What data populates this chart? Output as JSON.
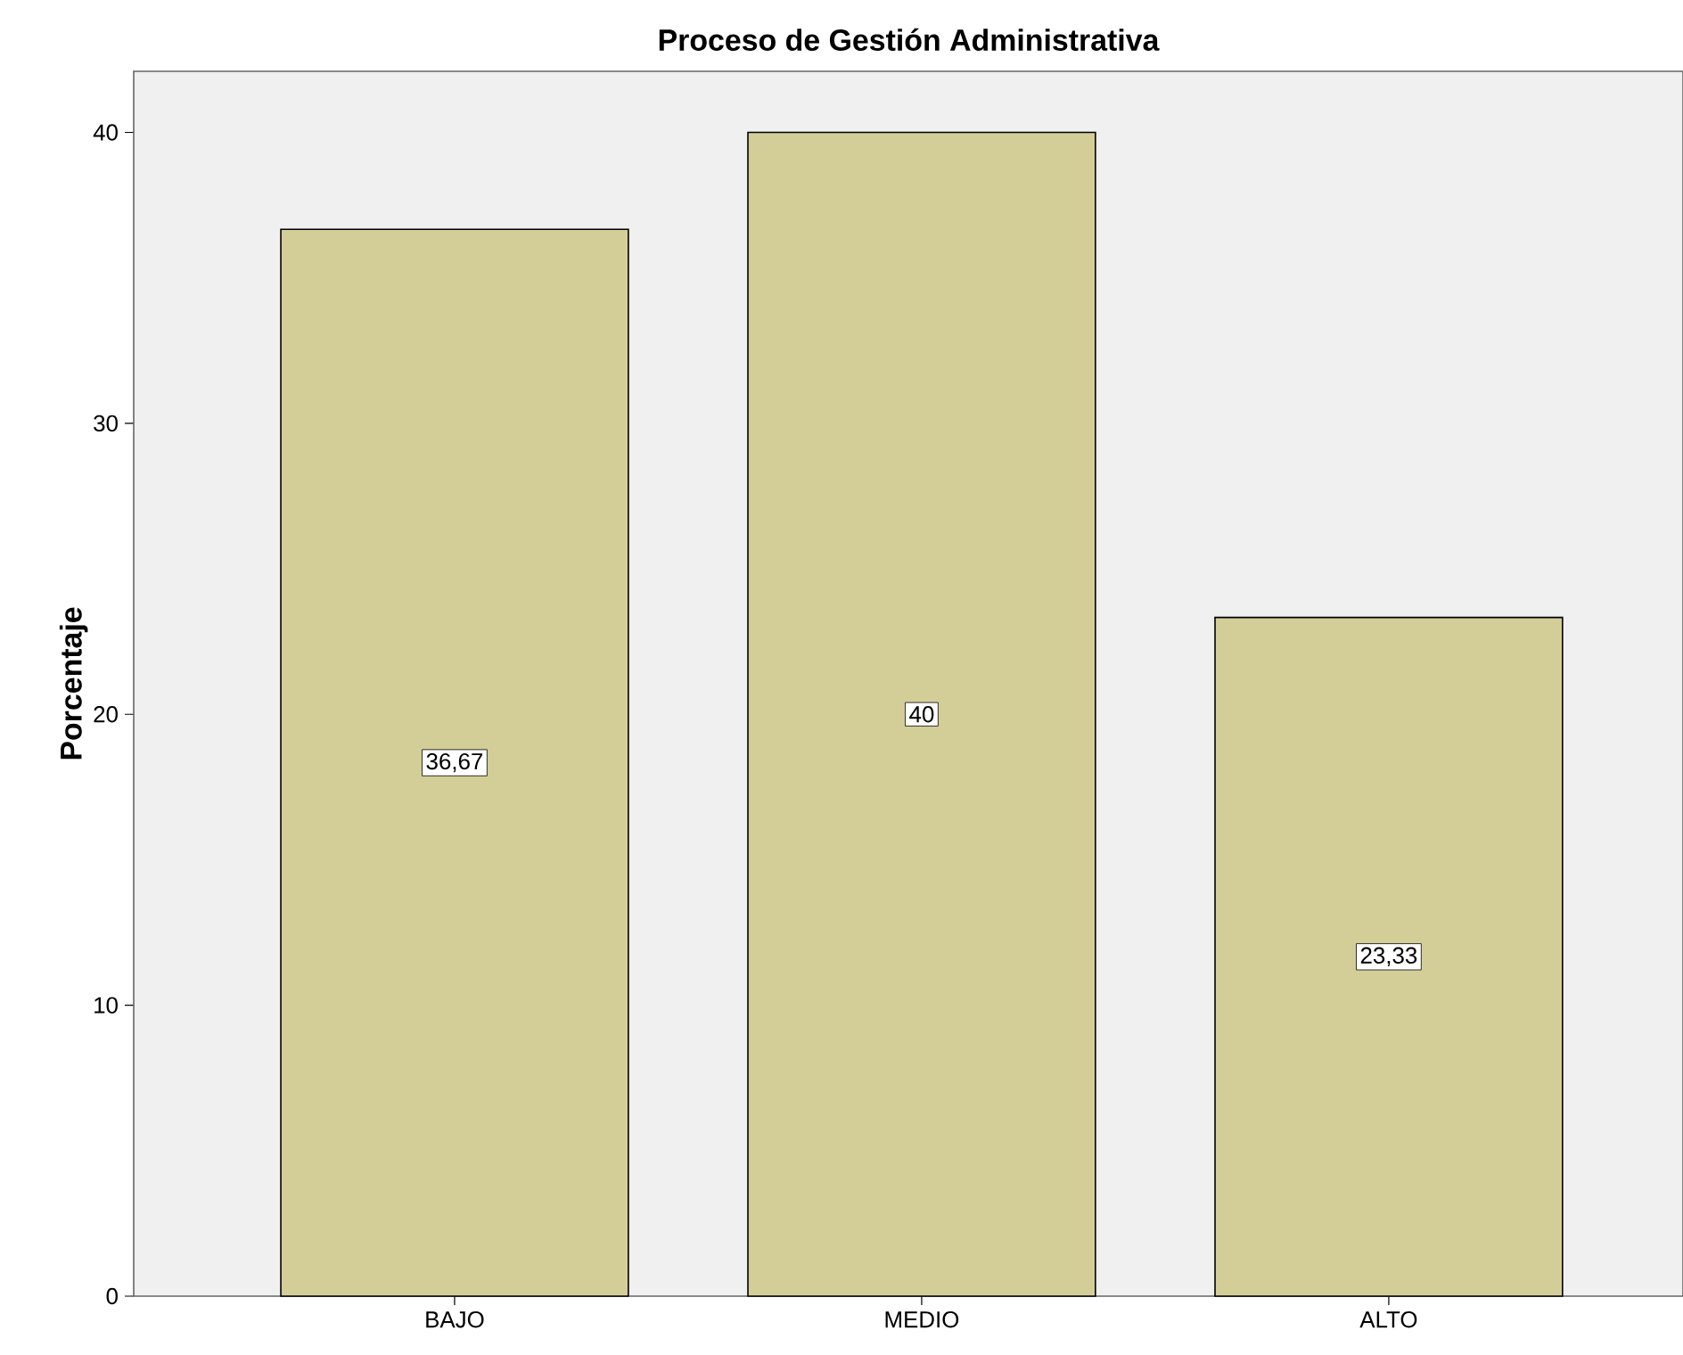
{
  "chart_data": {
    "type": "bar",
    "title": "Proceso de Gestión Administrativa",
    "ylabel": "Porcentaje",
    "categories": [
      "BAJO",
      "MEDIO",
      "ALTO"
    ],
    "values": [
      36.67,
      40,
      23.33
    ],
    "color": "#d3cd98",
    "value_labels": [
      "36,67",
      "40",
      "23,33"
    ],
    "ylim": [
      0,
      42.1
    ],
    "yticks": [
      0,
      10,
      20,
      30,
      40
    ],
    "grid": false
  }
}
